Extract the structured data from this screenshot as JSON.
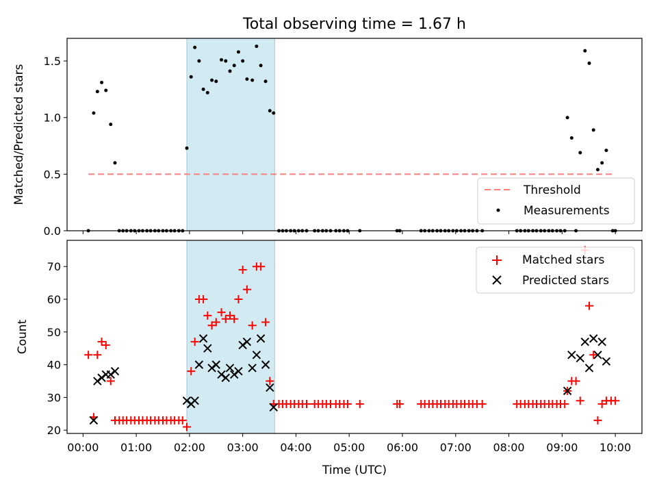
{
  "figure_title": "Total observing time = 1.67 h",
  "colors": {
    "highlight": "#add8e6",
    "threshold": "#ff7f7f",
    "measurement": "#000000",
    "matched": "#ff0000",
    "predicted": "#000000"
  },
  "chart_data": [
    {
      "type": "scatter",
      "title": "",
      "xlabel": "",
      "ylabel": "Matched/Predicted stars",
      "xlim": [
        -0.3,
        10.5
      ],
      "ylim": [
        0.0,
        1.7
      ],
      "xticks": [
        0,
        1,
        2,
        3,
        4,
        5,
        6,
        7,
        8,
        9,
        10
      ],
      "xtick_labels_visible": false,
      "yticks": [
        0.0,
        0.5,
        1.0,
        1.5
      ],
      "ytick_labels": [
        "0.0",
        "0.5",
        "1.0",
        "1.5"
      ],
      "highlight_span": [
        1.95,
        3.6
      ],
      "legend": {
        "placement": "lower-right",
        "entries": [
          "Threshold",
          "Measurements"
        ]
      },
      "series": [
        {
          "name": "Threshold",
          "kind": "dashed-line",
          "x": [
            0.1,
            10.0
          ],
          "y": [
            0.5,
            0.5
          ]
        },
        {
          "name": "Measurements",
          "kind": "dots",
          "points": [
            [
              0.1,
              0.0
            ],
            [
              0.2,
              1.04
            ],
            [
              0.27,
              1.23
            ],
            [
              0.35,
              1.31
            ],
            [
              0.43,
              1.24
            ],
            [
              0.52,
              0.94
            ],
            [
              0.6,
              0.6
            ],
            [
              0.68,
              0
            ],
            [
              0.75,
              0
            ],
            [
              0.82,
              0
            ],
            [
              0.9,
              0
            ],
            [
              0.97,
              0
            ],
            [
              1.05,
              0
            ],
            [
              1.12,
              0
            ],
            [
              1.2,
              0
            ],
            [
              1.27,
              0
            ],
            [
              1.35,
              0
            ],
            [
              1.42,
              0
            ],
            [
              1.5,
              0
            ],
            [
              1.57,
              0
            ],
            [
              1.65,
              0
            ],
            [
              1.72,
              0
            ],
            [
              1.8,
              0
            ],
            [
              1.87,
              0
            ],
            [
              1.95,
              0.73
            ],
            [
              2.03,
              1.36
            ],
            [
              2.1,
              1.62
            ],
            [
              2.18,
              1.5
            ],
            [
              2.26,
              1.25
            ],
            [
              2.34,
              1.22
            ],
            [
              2.42,
              1.33
            ],
            [
              2.5,
              1.32
            ],
            [
              2.6,
              1.51
            ],
            [
              2.68,
              1.5
            ],
            [
              2.76,
              1.41
            ],
            [
              2.84,
              1.46
            ],
            [
              2.92,
              1.58
            ],
            [
              3.0,
              1.5
            ],
            [
              3.08,
              1.34
            ],
            [
              3.18,
              1.33
            ],
            [
              3.26,
              1.63
            ],
            [
              3.34,
              1.46
            ],
            [
              3.43,
              1.32
            ],
            [
              3.51,
              1.06
            ],
            [
              3.58,
              1.04
            ],
            [
              3.68,
              0
            ],
            [
              3.75,
              0
            ],
            [
              3.82,
              0
            ],
            [
              3.9,
              0
            ],
            [
              3.97,
              0
            ],
            [
              4.05,
              0
            ],
            [
              4.12,
              0
            ],
            [
              4.2,
              0
            ],
            [
              4.35,
              0
            ],
            [
              4.42,
              0
            ],
            [
              4.5,
              0
            ],
            [
              4.57,
              0
            ],
            [
              4.65,
              0
            ],
            [
              4.75,
              0
            ],
            [
              4.82,
              0
            ],
            [
              4.9,
              0
            ],
            [
              4.97,
              0
            ],
            [
              5.2,
              0
            ],
            [
              5.9,
              0
            ],
            [
              5.95,
              0
            ],
            [
              6.35,
              0
            ],
            [
              6.42,
              0
            ],
            [
              6.5,
              0
            ],
            [
              6.57,
              0
            ],
            [
              6.65,
              0
            ],
            [
              6.72,
              0
            ],
            [
              6.8,
              0
            ],
            [
              6.87,
              0
            ],
            [
              6.95,
              0
            ],
            [
              7.02,
              0
            ],
            [
              7.1,
              0
            ],
            [
              7.17,
              0
            ],
            [
              7.25,
              0
            ],
            [
              7.32,
              0
            ],
            [
              7.4,
              0
            ],
            [
              7.5,
              0
            ],
            [
              8.15,
              0
            ],
            [
              8.22,
              0
            ],
            [
              8.3,
              0
            ],
            [
              8.37,
              0
            ],
            [
              8.45,
              0
            ],
            [
              8.52,
              0
            ],
            [
              8.6,
              0
            ],
            [
              8.67,
              0
            ],
            [
              8.75,
              0
            ],
            [
              8.82,
              0
            ],
            [
              8.9,
              0
            ],
            [
              8.97,
              0
            ],
            [
              9.05,
              0
            ],
            [
              9.1,
              1.0
            ],
            [
              9.18,
              0.82
            ],
            [
              9.26,
              0.0
            ],
            [
              9.34,
              0.69
            ],
            [
              9.43,
              1.59
            ],
            [
              9.51,
              1.48
            ],
            [
              9.59,
              0.89
            ],
            [
              9.67,
              0.54
            ],
            [
              9.75,
              0.6
            ],
            [
              9.83,
              0.71
            ],
            [
              9.95,
              0.0
            ],
            [
              10.0,
              0.0
            ]
          ]
        }
      ]
    },
    {
      "type": "scatter",
      "title": "",
      "xlabel": "Time (UTC)",
      "ylabel": "Count",
      "xlim": [
        -0.3,
        10.5
      ],
      "ylim": [
        19,
        78
      ],
      "xticks": [
        0,
        1,
        2,
        3,
        4,
        5,
        6,
        7,
        8,
        9,
        10
      ],
      "xtick_labels": [
        "00:00",
        "01:00",
        "02:00",
        "03:00",
        "04:00",
        "05:00",
        "06:00",
        "07:00",
        "08:00",
        "09:00",
        "10:00"
      ],
      "yticks": [
        20,
        30,
        40,
        50,
        60,
        70
      ],
      "ytick_labels": [
        "20",
        "30",
        "40",
        "50",
        "60",
        "70"
      ],
      "highlight_span": [
        1.95,
        3.6
      ],
      "legend": {
        "placement": "upper-right",
        "entries": [
          "Matched stars",
          "Predicted stars"
        ]
      },
      "series": [
        {
          "name": "Matched stars",
          "kind": "plus",
          "points": [
            [
              0.1,
              43
            ],
            [
              0.2,
              24
            ],
            [
              0.27,
              43
            ],
            [
              0.35,
              47
            ],
            [
              0.43,
              46
            ],
            [
              0.52,
              35
            ],
            [
              0.6,
              23
            ],
            [
              0.68,
              23
            ],
            [
              0.75,
              23
            ],
            [
              0.82,
              23
            ],
            [
              0.9,
              23
            ],
            [
              0.97,
              23
            ],
            [
              1.05,
              23
            ],
            [
              1.12,
              23
            ],
            [
              1.2,
              23
            ],
            [
              1.27,
              23
            ],
            [
              1.35,
              23
            ],
            [
              1.42,
              23
            ],
            [
              1.5,
              23
            ],
            [
              1.57,
              23
            ],
            [
              1.65,
              23
            ],
            [
              1.72,
              23
            ],
            [
              1.8,
              23
            ],
            [
              1.87,
              23
            ],
            [
              1.95,
              21
            ],
            [
              2.03,
              38
            ],
            [
              2.1,
              47
            ],
            [
              2.18,
              60
            ],
            [
              2.26,
              60
            ],
            [
              2.34,
              55
            ],
            [
              2.42,
              52
            ],
            [
              2.5,
              53
            ],
            [
              2.6,
              56
            ],
            [
              2.68,
              54
            ],
            [
              2.76,
              55
            ],
            [
              2.84,
              54
            ],
            [
              2.92,
              60
            ],
            [
              3.0,
              69
            ],
            [
              3.08,
              63
            ],
            [
              3.18,
              52
            ],
            [
              3.26,
              70
            ],
            [
              3.34,
              70
            ],
            [
              3.43,
              53
            ],
            [
              3.51,
              35
            ],
            [
              3.58,
              28
            ],
            [
              3.68,
              28
            ],
            [
              3.75,
              28
            ],
            [
              3.82,
              28
            ],
            [
              3.9,
              28
            ],
            [
              3.97,
              28
            ],
            [
              4.05,
              28
            ],
            [
              4.12,
              28
            ],
            [
              4.2,
              28
            ],
            [
              4.35,
              28
            ],
            [
              4.42,
              28
            ],
            [
              4.5,
              28
            ],
            [
              4.57,
              28
            ],
            [
              4.65,
              28
            ],
            [
              4.75,
              28
            ],
            [
              4.82,
              28
            ],
            [
              4.9,
              28
            ],
            [
              4.97,
              28
            ],
            [
              5.2,
              28
            ],
            [
              5.9,
              28
            ],
            [
              5.95,
              28
            ],
            [
              6.35,
              28
            ],
            [
              6.42,
              28
            ],
            [
              6.5,
              28
            ],
            [
              6.57,
              28
            ],
            [
              6.65,
              28
            ],
            [
              6.72,
              28
            ],
            [
              6.8,
              28
            ],
            [
              6.87,
              28
            ],
            [
              6.95,
              28
            ],
            [
              7.02,
              28
            ],
            [
              7.1,
              28
            ],
            [
              7.17,
              28
            ],
            [
              7.25,
              28
            ],
            [
              7.32,
              28
            ],
            [
              7.4,
              28
            ],
            [
              7.5,
              28
            ],
            [
              8.15,
              28
            ],
            [
              8.22,
              28
            ],
            [
              8.3,
              28
            ],
            [
              8.37,
              28
            ],
            [
              8.45,
              28
            ],
            [
              8.52,
              28
            ],
            [
              8.6,
              28
            ],
            [
              8.67,
              28
            ],
            [
              8.75,
              28
            ],
            [
              8.82,
              28
            ],
            [
              8.9,
              28
            ],
            [
              8.97,
              28
            ],
            [
              9.05,
              28
            ],
            [
              9.1,
              32
            ],
            [
              9.18,
              35
            ],
            [
              9.26,
              35
            ],
            [
              9.34,
              29
            ],
            [
              9.43,
              75
            ],
            [
              9.51,
              58
            ],
            [
              9.59,
              43
            ],
            [
              9.67,
              23
            ],
            [
              9.75,
              28
            ],
            [
              9.83,
              29
            ],
            [
              9.92,
              29
            ],
            [
              10.0,
              29
            ]
          ]
        },
        {
          "name": "Predicted stars",
          "kind": "cross",
          "points": [
            [
              0.2,
              23
            ],
            [
              0.27,
              35
            ],
            [
              0.35,
              36
            ],
            [
              0.43,
              37
            ],
            [
              0.52,
              37
            ],
            [
              0.6,
              38
            ],
            [
              1.95,
              29
            ],
            [
              2.03,
              28
            ],
            [
              2.1,
              29
            ],
            [
              2.18,
              40
            ],
            [
              2.26,
              48
            ],
            [
              2.34,
              45
            ],
            [
              2.42,
              39
            ],
            [
              2.5,
              40
            ],
            [
              2.6,
              37
            ],
            [
              2.68,
              36
            ],
            [
              2.76,
              39
            ],
            [
              2.84,
              37
            ],
            [
              2.92,
              38
            ],
            [
              3.0,
              46
            ],
            [
              3.08,
              47
            ],
            [
              3.18,
              39
            ],
            [
              3.26,
              43
            ],
            [
              3.34,
              48
            ],
            [
              3.43,
              40
            ],
            [
              3.51,
              33
            ],
            [
              3.58,
              27
            ],
            [
              9.1,
              32
            ],
            [
              9.18,
              43
            ],
            [
              9.34,
              42
            ],
            [
              9.43,
              47
            ],
            [
              9.51,
              39
            ],
            [
              9.59,
              48
            ],
            [
              9.67,
              43
            ],
            [
              9.75,
              47
            ],
            [
              9.83,
              41
            ]
          ]
        }
      ]
    }
  ]
}
